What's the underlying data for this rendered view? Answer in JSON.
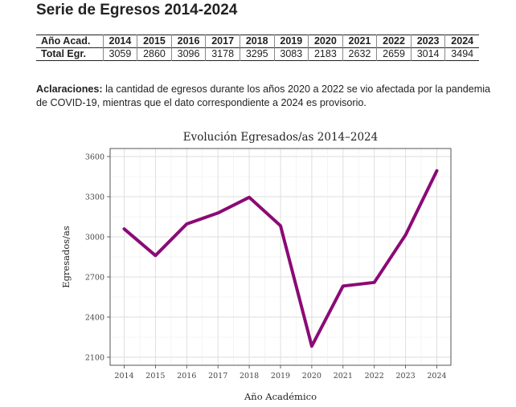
{
  "page": {
    "title": "Serie de Egresos 2014-2024"
  },
  "table": {
    "header_label": "Año Acad.",
    "years": [
      "2014",
      "2015",
      "2016",
      "2017",
      "2018",
      "2019",
      "2020",
      "2021",
      "2022",
      "2023",
      "2024"
    ],
    "row_label": "Total Egr.",
    "values": [
      "3059",
      "2860",
      "3096",
      "3178",
      "3295",
      "3083",
      "2183",
      "2632",
      "2659",
      "3014",
      "3494"
    ]
  },
  "note": {
    "lead": "Aclaraciones:",
    "text": " la cantidad de egresos durante los años 2020 a 2022 se vio afectada por la pandemia de COVID-19, mientras que el dato correspondiente a 2024 es provisorio."
  },
  "chart_data": {
    "type": "line",
    "title": "Evolución Egresados/as 2014–2024",
    "xlabel": "Año Académico",
    "ylabel": "Egresados/as",
    "x": [
      2014,
      2015,
      2016,
      2017,
      2018,
      2019,
      2020,
      2021,
      2022,
      2023,
      2024
    ],
    "x_tick_labels": [
      "2014",
      "2015",
      "2016",
      "2017",
      "2018",
      "2019",
      "2020",
      "2021",
      "2022",
      "2023",
      "2024"
    ],
    "y_ticks": [
      2100,
      2400,
      2700,
      3000,
      3300,
      3600
    ],
    "y_tick_labels": [
      "2100",
      "2400",
      "2700",
      "3000",
      "3300",
      "3600"
    ],
    "xlim": [
      2013.55,
      2024.45
    ],
    "ylim": [
      2040,
      3660
    ],
    "grid": true,
    "series": [
      {
        "values": [
          3059,
          2860,
          3096,
          3178,
          3295,
          3083,
          2183,
          2632,
          2659,
          3014,
          3494
        ],
        "color": "#8b0a75"
      }
    ]
  }
}
